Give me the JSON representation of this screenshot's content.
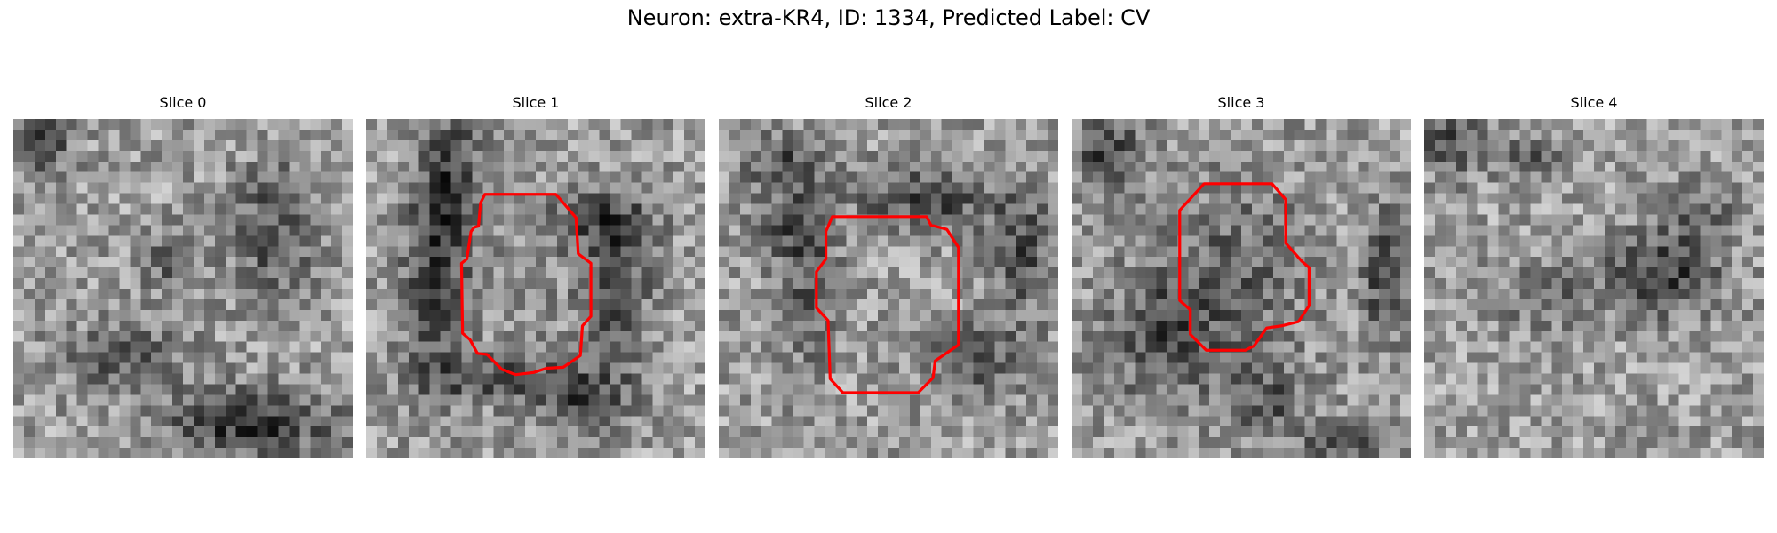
{
  "figure": {
    "title": "Neuron: extra-KR4, ID: 1334, Predicted Label: CV"
  },
  "slices": [
    {
      "label": "Slice 0",
      "outline": null
    },
    {
      "label": "Slice 1",
      "outline": "#ff0000"
    },
    {
      "label": "Slice 2",
      "outline": "#ff0000"
    },
    {
      "label": "Slice 3",
      "outline": "#ff0000"
    },
    {
      "label": "Slice 4",
      "outline": null
    }
  ],
  "colors": {
    "outline": "#ff0000",
    "colormap": "grayscale"
  }
}
